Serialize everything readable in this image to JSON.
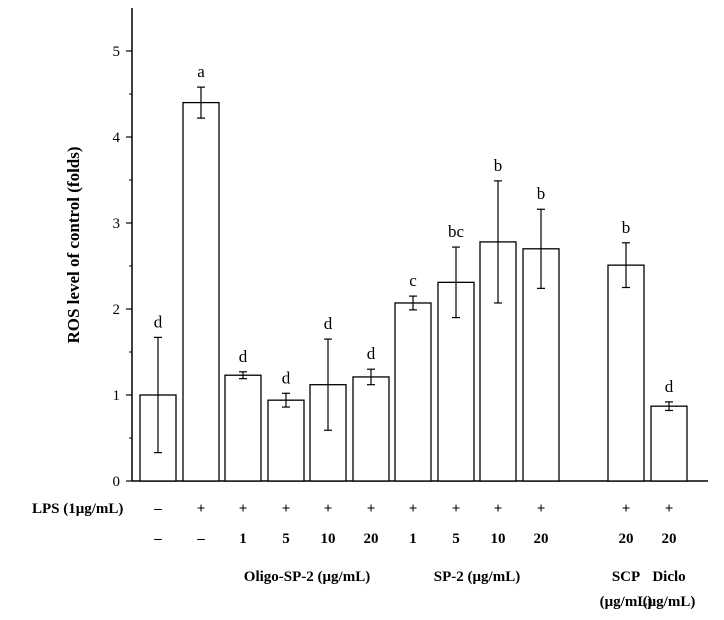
{
  "chart_data": {
    "type": "bar",
    "ylabel": "ROS level of control (folds)",
    "ylim": [
      0,
      5.5
    ],
    "yticks": [
      "0",
      "1",
      "2",
      "3",
      "4",
      "5"
    ],
    "grid": false,
    "bar_fill": "#ffffff",
    "bar_stroke": "#000000",
    "bars": [
      {
        "value": 1.0,
        "error": 0.67,
        "sig": "d",
        "lps": "–",
        "dose": "–"
      },
      {
        "value": 4.4,
        "error": 0.18,
        "sig": "a",
        "lps": "+",
        "dose": "–"
      },
      {
        "value": 1.23,
        "error": 0.04,
        "sig": "d",
        "lps": "+",
        "dose": "1"
      },
      {
        "value": 0.94,
        "error": 0.08,
        "sig": "d",
        "lps": "+",
        "dose": "5"
      },
      {
        "value": 1.12,
        "error": 0.53,
        "sig": "d",
        "lps": "+",
        "dose": "10"
      },
      {
        "value": 1.21,
        "error": 0.09,
        "sig": "d",
        "lps": "+",
        "dose": "20"
      },
      {
        "value": 2.07,
        "error": 0.08,
        "sig": "c",
        "lps": "+",
        "dose": "1"
      },
      {
        "value": 2.31,
        "error": 0.41,
        "sig": "bc",
        "lps": "+",
        "dose": "5"
      },
      {
        "value": 2.78,
        "error": 0.71,
        "sig": "b",
        "lps": "+",
        "dose": "10"
      },
      {
        "value": 2.7,
        "error": 0.46,
        "sig": "b",
        "lps": "+",
        "dose": "20"
      },
      {
        "value": 2.51,
        "error": 0.26,
        "sig": "b",
        "lps": "+",
        "dose": "20"
      },
      {
        "value": 0.87,
        "error": 0.05,
        "sig": "d",
        "lps": "+",
        "dose": "20"
      }
    ],
    "row_label": "LPS (1μg/mL)",
    "groups": [
      {
        "lines": [
          "Oligo-SP-2 (μg/mL)"
        ],
        "bars": [
          2,
          3,
          4,
          5
        ]
      },
      {
        "lines": [
          "SP-2 (μg/mL)"
        ],
        "bars": [
          6,
          7,
          8,
          9
        ]
      },
      {
        "lines": [
          "SCP",
          "(μg/mL)"
        ],
        "bars": [
          10
        ]
      },
      {
        "lines": [
          "Diclo",
          "(μg/mL)"
        ],
        "bars": [
          11
        ]
      }
    ]
  }
}
